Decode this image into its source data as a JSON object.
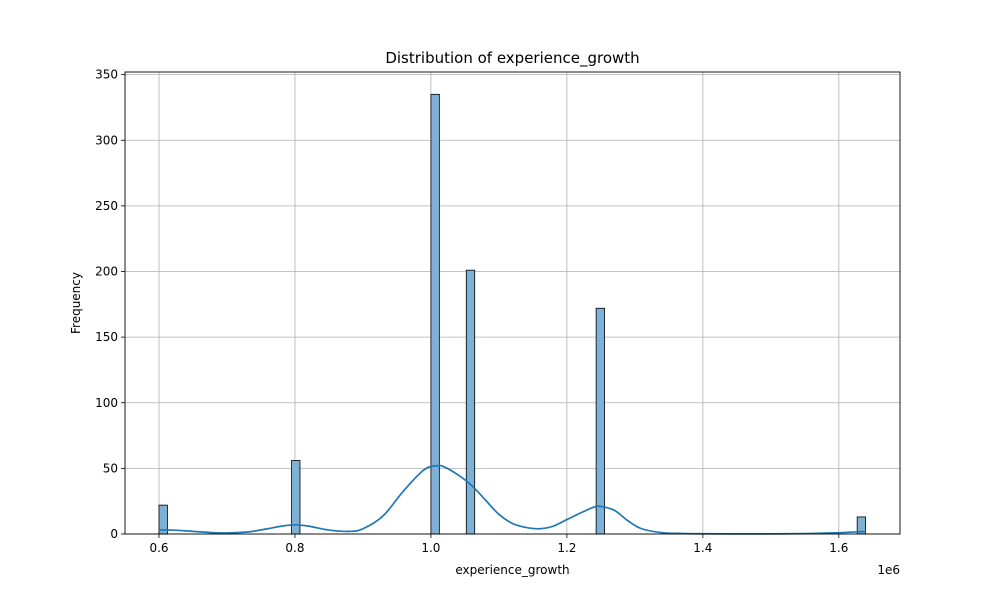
{
  "chart_data": {
    "type": "bar",
    "title": "Distribution of experience_growth",
    "xlabel": "experience_growth",
    "ylabel": "Frequency",
    "x_offset_label": "1e6",
    "xlim": [
      550000,
      1690000
    ],
    "ylim": [
      0,
      352
    ],
    "grid": true,
    "x_ticks": [
      {
        "value": 600000,
        "label": "0.6"
      },
      {
        "value": 800000,
        "label": "0.8"
      },
      {
        "value": 1000000,
        "label": "1.0"
      },
      {
        "value": 1200000,
        "label": "1.2"
      },
      {
        "value": 1400000,
        "label": "1.4"
      },
      {
        "value": 1600000,
        "label": "1.6"
      }
    ],
    "y_ticks": [
      {
        "value": 0,
        "label": "0"
      },
      {
        "value": 50,
        "label": "50"
      },
      {
        "value": 100,
        "label": "100"
      },
      {
        "value": 150,
        "label": "150"
      },
      {
        "value": 200,
        "label": "200"
      },
      {
        "value": 250,
        "label": "250"
      },
      {
        "value": 300,
        "label": "300"
      },
      {
        "value": 350,
        "label": "350"
      }
    ],
    "bars": [
      {
        "x0": 600000,
        "x1": 612400,
        "count": 22
      },
      {
        "x0": 795000,
        "x1": 807400,
        "count": 56
      },
      {
        "x0": 1000000,
        "x1": 1012400,
        "count": 335
      },
      {
        "x0": 1052000,
        "x1": 1064400,
        "count": 201
      },
      {
        "x0": 1243000,
        "x1": 1255400,
        "count": 172
      },
      {
        "x0": 1627000,
        "x1": 1639400,
        "count": 13
      }
    ],
    "kde": {
      "x": [
        600000,
        620000,
        650000,
        680000,
        700000,
        730000,
        760000,
        780000,
        800000,
        820000,
        850000,
        880000,
        900000,
        930000,
        960000,
        990000,
        1010000,
        1020000,
        1040000,
        1060000,
        1080000,
        1100000,
        1120000,
        1140000,
        1160000,
        1180000,
        1200000,
        1220000,
        1240000,
        1250000,
        1270000,
        1290000,
        1310000,
        1340000,
        1370000,
        1400000,
        1450000,
        1500000,
        1550000,
        1600000,
        1640000
      ],
      "y": [
        3,
        3,
        2,
        1,
        0.8,
        1.5,
        4,
        6,
        7,
        6,
        3,
        2,
        4,
        14,
        33,
        49,
        52,
        51,
        45,
        37,
        26,
        15,
        8,
        5,
        4,
        6,
        11,
        16,
        20.5,
        21,
        18,
        10,
        4,
        1,
        0.4,
        0.2,
        0.1,
        0.1,
        0.3,
        1,
        2
      ]
    },
    "colors": {
      "bar_fill": "#7fb1d7",
      "bar_edge": "#000000",
      "kde_line": "#1f77b4",
      "grid": "#b0b0b0",
      "axis": "#000000"
    }
  }
}
